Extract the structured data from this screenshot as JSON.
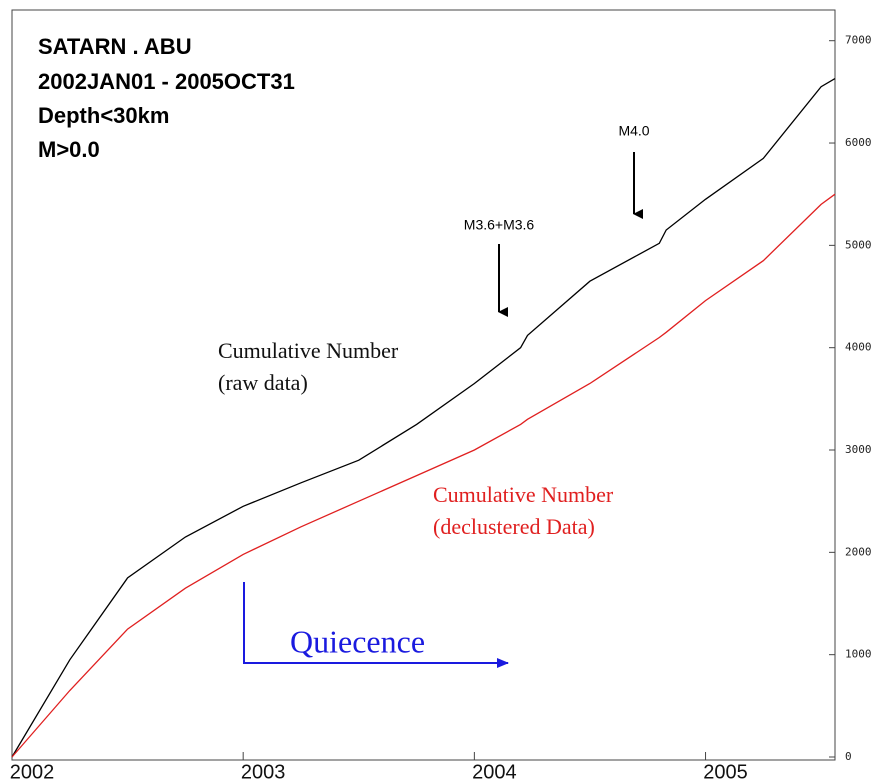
{
  "chart_data": {
    "type": "line",
    "x": [
      2002.0,
      2002.25,
      2002.5,
      2002.75,
      2003.0,
      2003.25,
      2003.5,
      2003.75,
      2004.0,
      2004.2,
      2004.23,
      2004.5,
      2004.8,
      2004.83,
      2005.0,
      2005.25,
      2005.5,
      2005.56
    ],
    "series": [
      {
        "name": "Cumulative Number (raw data)",
        "color": "#000000",
        "values": [
          0,
          950,
          1750,
          2150,
          2450,
          2680,
          2900,
          3250,
          3650,
          4000,
          4120,
          4650,
          5020,
          5150,
          5450,
          5850,
          6550,
          6630
        ]
      },
      {
        "name": "Cumulative Number (declustered Data)",
        "color": "#e02020",
        "values": [
          0,
          650,
          1250,
          1650,
          1980,
          2250,
          2500,
          2750,
          3000,
          3250,
          3300,
          3650,
          4100,
          4150,
          4460,
          4850,
          5400,
          5500
        ]
      }
    ],
    "xlim": [
      2002,
      2005.56
    ],
    "xticks": [
      2002,
      2003,
      2004,
      2005
    ],
    "ylim": [
      0,
      7300
    ],
    "yticks": [
      0,
      1000,
      2000,
      3000,
      4000,
      5000,
      6000,
      7000
    ],
    "annotations": [
      "SATARN . ABU",
      "2002JAN01 - 2005OCT31",
      "Depth<30km",
      "M>0.0",
      "M4.0",
      "M3.6+M3.6",
      "Cumulative Number",
      "(raw data)",
      "Cumulative Number",
      "(declustered Data)",
      "Quiecence"
    ]
  }
}
